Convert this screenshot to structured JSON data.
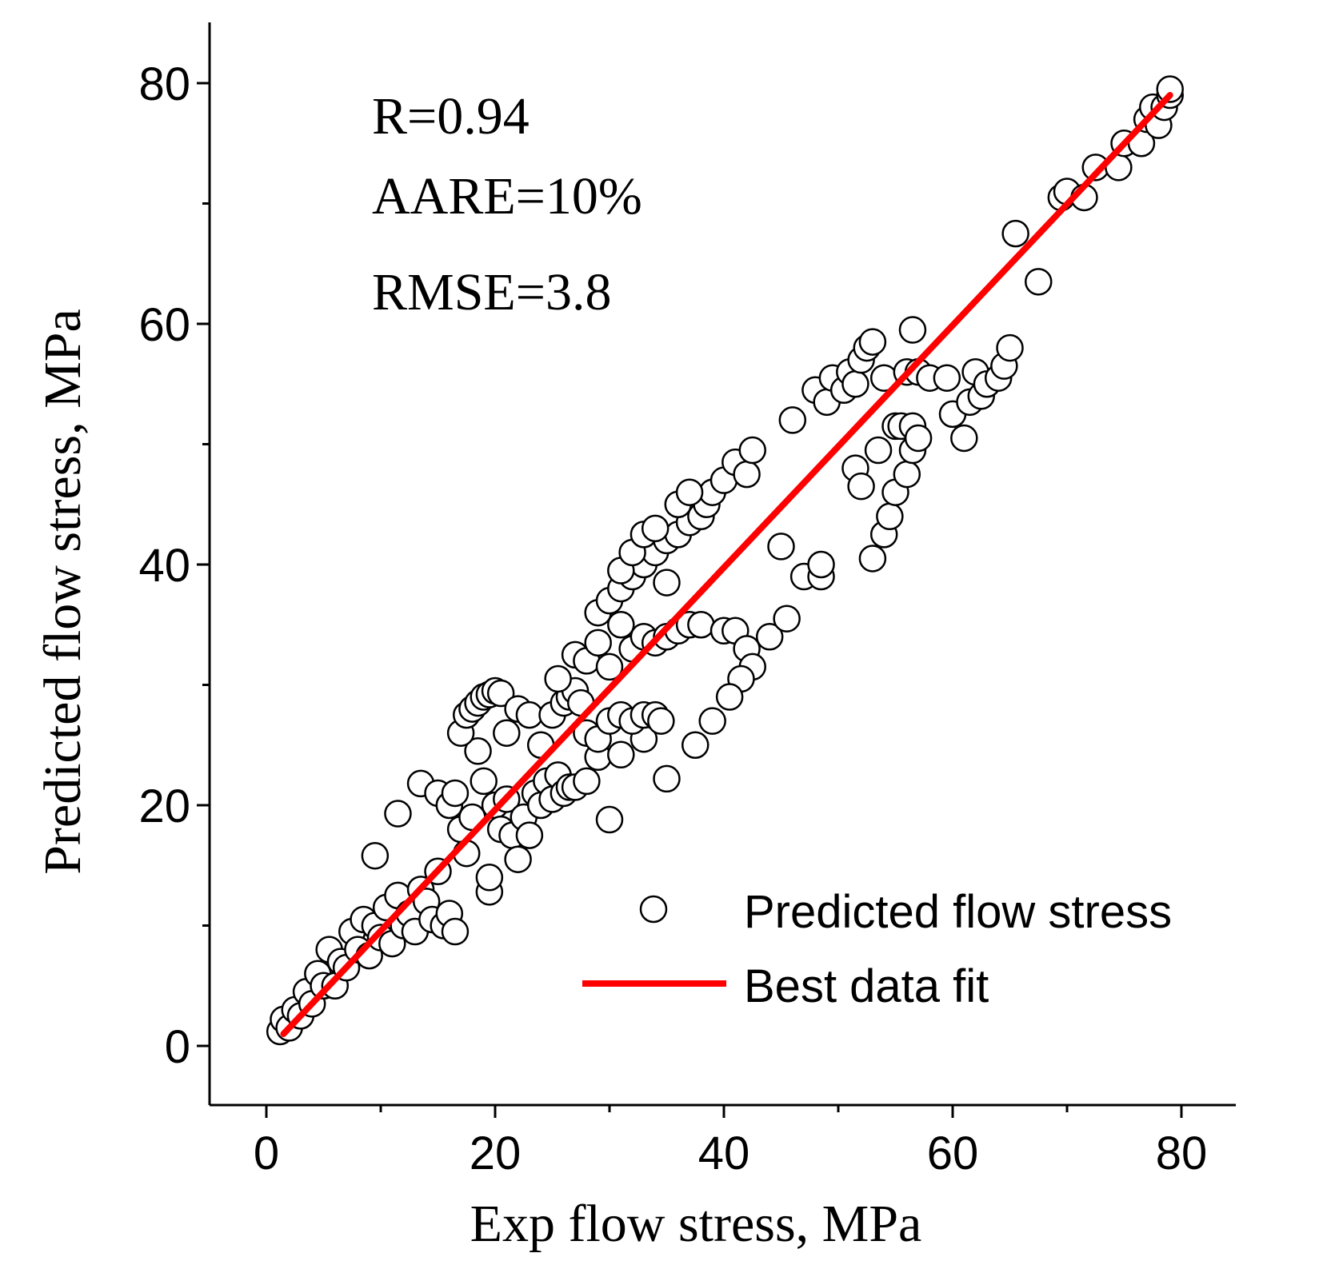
{
  "chart_data": {
    "type": "scatter",
    "xlabel": "Exp flow stress, MPa",
    "ylabel": "Predicted flow stress, MPa",
    "xlim": [
      -5,
      85
    ],
    "ylim": [
      -5,
      85
    ],
    "x_ticks": [
      0,
      20,
      40,
      60,
      80
    ],
    "y_ticks": [
      0,
      20,
      40,
      60,
      80
    ],
    "x_minor_step": 10,
    "y_minor_step": 10,
    "grid": false,
    "legend_position": "bottom-right",
    "annotations": [
      "R=0.94",
      "AARE=10%",
      "RMSE=3.8"
    ],
    "colors": {
      "fit_line": "#ff0000",
      "marker_edge": "#000000",
      "marker_fill": "#ffffff"
    },
    "series": [
      {
        "name": "Predicted flow stress",
        "kind": "scatter",
        "marker": "open-circle",
        "points": [
          [
            1.2,
            1.2
          ],
          [
            1.5,
            2.2
          ],
          [
            2.0,
            1.5
          ],
          [
            2.5,
            3.0
          ],
          [
            3.0,
            2.5
          ],
          [
            3.5,
            4.5
          ],
          [
            4.0,
            3.5
          ],
          [
            4.5,
            6.0
          ],
          [
            5.0,
            5.0
          ],
          [
            5.5,
            8.0
          ],
          [
            6.0,
            5.0
          ],
          [
            6.5,
            7.0
          ],
          [
            7.0,
            6.5
          ],
          [
            7.5,
            9.5
          ],
          [
            8.0,
            8.0
          ],
          [
            8.5,
            10.5
          ],
          [
            9.0,
            7.5
          ],
          [
            9.5,
            10.0
          ],
          [
            10.0,
            9.0
          ],
          [
            10.5,
            11.5
          ],
          [
            11.0,
            8.5
          ],
          [
            11.5,
            12.5
          ],
          [
            12.0,
            10.0
          ],
          [
            12.5,
            11.0
          ],
          [
            13.0,
            9.5
          ],
          [
            13.5,
            13.0
          ],
          [
            14.0,
            12.0
          ],
          [
            14.5,
            10.5
          ],
          [
            15.0,
            14.5
          ],
          [
            15.5,
            10.0
          ],
          [
            16.0,
            11.0
          ],
          [
            16.5,
            9.5
          ],
          [
            9.5,
            15.8
          ],
          [
            11.5,
            19.3
          ],
          [
            13.5,
            21.8
          ],
          [
            15.0,
            21.0
          ],
          [
            16.0,
            20.0
          ],
          [
            16.5,
            21.0
          ],
          [
            17.0,
            18.0
          ],
          [
            17.5,
            16.0
          ],
          [
            18.0,
            19.0
          ],
          [
            18.5,
            24.5
          ],
          [
            19.0,
            22.0
          ],
          [
            19.5,
            12.8
          ],
          [
            19.5,
            14.0
          ],
          [
            20.0,
            20.0
          ],
          [
            20.5,
            18.0
          ],
          [
            21.0,
            20.5
          ],
          [
            21.5,
            17.5
          ],
          [
            22.0,
            15.5
          ],
          [
            22.5,
            19.0
          ],
          [
            23.0,
            17.5
          ],
          [
            23.5,
            21.0
          ],
          [
            24.0,
            20.0
          ],
          [
            24.5,
            22.0
          ],
          [
            25.0,
            20.5
          ],
          [
            25.5,
            22.5
          ],
          [
            26.0,
            21.0
          ],
          [
            26.5,
            21.5
          ],
          [
            27.0,
            21.5
          ],
          [
            28.0,
            22.0
          ],
          [
            29.0,
            24.0
          ],
          [
            30.0,
            18.8
          ],
          [
            31.0,
            24.2
          ],
          [
            33.0,
            25.5
          ],
          [
            35.0,
            22.2
          ],
          [
            17.0,
            26.0
          ],
          [
            17.5,
            27.5
          ],
          [
            18.0,
            28.0
          ],
          [
            18.5,
            28.5
          ],
          [
            19.0,
            29.0
          ],
          [
            19.5,
            29.2
          ],
          [
            20.0,
            29.5
          ],
          [
            20.5,
            29.3
          ],
          [
            21.0,
            26.0
          ],
          [
            22.0,
            28.0
          ],
          [
            23.0,
            27.5
          ],
          [
            24.0,
            25.0
          ],
          [
            25.0,
            27.5
          ],
          [
            26.0,
            28.5
          ],
          [
            26.5,
            29.0
          ],
          [
            27.0,
            29.5
          ],
          [
            27.5,
            28.5
          ],
          [
            28.0,
            26.0
          ],
          [
            29.0,
            25.5
          ],
          [
            30.0,
            27.0
          ],
          [
            31.0,
            27.5
          ],
          [
            32.0,
            27.0
          ],
          [
            33.0,
            27.5
          ],
          [
            34.0,
            27.5
          ],
          [
            34.5,
            27.0
          ],
          [
            25.5,
            30.5
          ],
          [
            27.0,
            32.5
          ],
          [
            28.0,
            32.0
          ],
          [
            29.0,
            33.5
          ],
          [
            30.0,
            31.5
          ],
          [
            31.0,
            35.0
          ],
          [
            32.0,
            33.0
          ],
          [
            33.0,
            34.0
          ],
          [
            34.0,
            33.5
          ],
          [
            35.0,
            34.0
          ],
          [
            36.0,
            34.5
          ],
          [
            37.0,
            35.0
          ],
          [
            38.0,
            35.0
          ],
          [
            29.0,
            36.0
          ],
          [
            30.0,
            37.0
          ],
          [
            31.0,
            38.0
          ],
          [
            32.0,
            39.0
          ],
          [
            33.0,
            40.0
          ],
          [
            34.0,
            41.0
          ],
          [
            35.0,
            42.0
          ],
          [
            36.0,
            42.5
          ],
          [
            37.0,
            43.5
          ],
          [
            38.0,
            44.0
          ],
          [
            38.5,
            45.0
          ],
          [
            39.0,
            46.0
          ],
          [
            31.0,
            39.5
          ],
          [
            32.0,
            41.0
          ],
          [
            33.0,
            42.5
          ],
          [
            34.0,
            43.0
          ],
          [
            35.0,
            38.5
          ],
          [
            36.0,
            45.0
          ],
          [
            37.0,
            46.0
          ],
          [
            40.0,
            47.0
          ],
          [
            41.0,
            48.5
          ],
          [
            42.0,
            47.5
          ],
          [
            42.5,
            49.5
          ],
          [
            40.0,
            34.5
          ],
          [
            41.0,
            34.5
          ],
          [
            42.0,
            33.0
          ],
          [
            42.5,
            31.5
          ],
          [
            41.5,
            30.5
          ],
          [
            40.5,
            29.0
          ],
          [
            39.0,
            27.0
          ],
          [
            37.5,
            25.0
          ],
          [
            44.0,
            34.0
          ],
          [
            45.0,
            41.5
          ],
          [
            45.5,
            35.5
          ],
          [
            46.0,
            52.0
          ],
          [
            47.0,
            39.0
          ],
          [
            48.0,
            54.5
          ],
          [
            48.5,
            39.0
          ],
          [
            48.5,
            40.0
          ],
          [
            49.0,
            53.5
          ],
          [
            49.5,
            55.5
          ],
          [
            50.5,
            54.5
          ],
          [
            51.0,
            56.0
          ],
          [
            51.5,
            55.0
          ],
          [
            52.0,
            57.0
          ],
          [
            52.5,
            58.0
          ],
          [
            53.0,
            58.5
          ],
          [
            51.5,
            48.0
          ],
          [
            52.0,
            46.5
          ],
          [
            53.0,
            40.5
          ],
          [
            54.0,
            42.5
          ],
          [
            54.5,
            44.0
          ],
          [
            55.0,
            46.0
          ],
          [
            56.0,
            47.5
          ],
          [
            56.5,
            49.5
          ],
          [
            55.0,
            51.5
          ],
          [
            55.5,
            51.5
          ],
          [
            56.5,
            51.5
          ],
          [
            57.0,
            50.5
          ],
          [
            53.5,
            49.5
          ],
          [
            54.0,
            55.5
          ],
          [
            56.0,
            56.0
          ],
          [
            56.5,
            59.5
          ],
          [
            57.0,
            56.0
          ],
          [
            58.0,
            55.5
          ],
          [
            59.5,
            55.5
          ],
          [
            60.0,
            52.5
          ],
          [
            61.0,
            50.5
          ],
          [
            61.5,
            53.5
          ],
          [
            62.0,
            56.0
          ],
          [
            62.5,
            54.0
          ],
          [
            63.0,
            55.0
          ],
          [
            64.0,
            55.5
          ],
          [
            64.5,
            56.5
          ],
          [
            65.0,
            58.0
          ],
          [
            65.5,
            67.5
          ],
          [
            67.5,
            63.5
          ],
          [
            69.5,
            70.5
          ],
          [
            70.0,
            71.0
          ],
          [
            71.5,
            70.5
          ],
          [
            72.5,
            73.0
          ],
          [
            74.5,
            73.0
          ],
          [
            75.0,
            75.0
          ],
          [
            76.5,
            75.0
          ],
          [
            77.0,
            77.0
          ],
          [
            77.5,
            78.0
          ],
          [
            78.0,
            76.5
          ],
          [
            78.5,
            78.0
          ],
          [
            79.0,
            79.0
          ],
          [
            79.0,
            79.5
          ]
        ]
      },
      {
        "name": "Best data fit",
        "kind": "line",
        "points": [
          [
            1.5,
            1.0
          ],
          [
            79.0,
            79.0
          ]
        ]
      }
    ]
  }
}
